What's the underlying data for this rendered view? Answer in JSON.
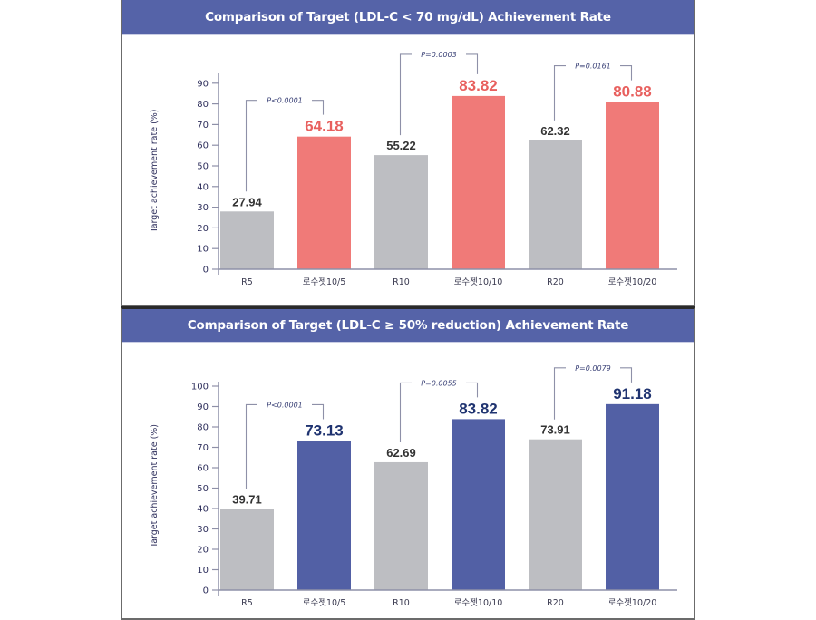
{
  "chart_data": [
    {
      "type": "bar",
      "title": "Comparison of Target (LDL-C < 70 mg/dL) Achievement Rate",
      "xlabel": "",
      "ylabel": "Target achievement rate (%)",
      "ylim": [
        0,
        90
      ],
      "yticks": [
        0,
        10,
        20,
        30,
        40,
        50,
        60,
        70,
        80,
        90
      ],
      "grid": false,
      "categories": [
        "R5",
        "로수젯10/5",
        "R10",
        "로수젯10/10",
        "R20",
        "로수젯10/20"
      ],
      "values": [
        27.94,
        64.18,
        55.22,
        83.82,
        62.32,
        80.88
      ],
      "value_labels": [
        "27.94",
        "64.18",
        "55.22",
        "83.82",
        "62.32",
        "80.88"
      ],
      "bar_colors": [
        "#bdbec2",
        "#f07a78",
        "#bdbec2",
        "#f07a78",
        "#bdbec2",
        "#f07a78"
      ],
      "label_colors": [
        "#333333",
        "#e8605e",
        "#333333",
        "#e8605e",
        "#333333",
        "#e8605e"
      ],
      "comparisons": [
        {
          "from": 0,
          "to": 1,
          "label": "P<0.0001"
        },
        {
          "from": 2,
          "to": 3,
          "label": "P=0.0003"
        },
        {
          "from": 4,
          "to": 5,
          "label": "P=0.0161"
        }
      ]
    },
    {
      "type": "bar",
      "title": "Comparison of Target (LDL-C ≥ 50% reduction) Achievement Rate",
      "xlabel": "",
      "ylabel": "Target achievement rate (%)",
      "ylim": [
        0,
        100
      ],
      "yticks": [
        0,
        10,
        20,
        30,
        40,
        50,
        60,
        70,
        80,
        90,
        100
      ],
      "grid": false,
      "categories": [
        "R5",
        "로수젯10/5",
        "R10",
        "로수젯10/10",
        "R20",
        "로수젯10/20"
      ],
      "values": [
        39.71,
        73.13,
        62.69,
        83.82,
        73.91,
        91.18
      ],
      "value_labels": [
        "39.71",
        "73.13",
        "62.69",
        "83.82",
        "73.91",
        "91.18"
      ],
      "bar_colors": [
        "#bdbec2",
        "#5260a5",
        "#bdbec2",
        "#5260a5",
        "#bdbec2",
        "#5260a5"
      ],
      "label_colors": [
        "#333333",
        "#1f3370",
        "#333333",
        "#1f3370",
        "#333333",
        "#1f3370"
      ],
      "comparisons": [
        {
          "from": 0,
          "to": 1,
          "label": "P<0.0001"
        },
        {
          "from": 2,
          "to": 3,
          "label": "P=0.0055"
        },
        {
          "from": 4,
          "to": 5,
          "label": "P=0.0079"
        }
      ]
    }
  ],
  "colors": {
    "header_bg": "#5563a8",
    "header_text": "#ffffff",
    "axis": "#8e90a8",
    "tick_text": "#2e2f5c",
    "bracket": "#8e90a8"
  }
}
